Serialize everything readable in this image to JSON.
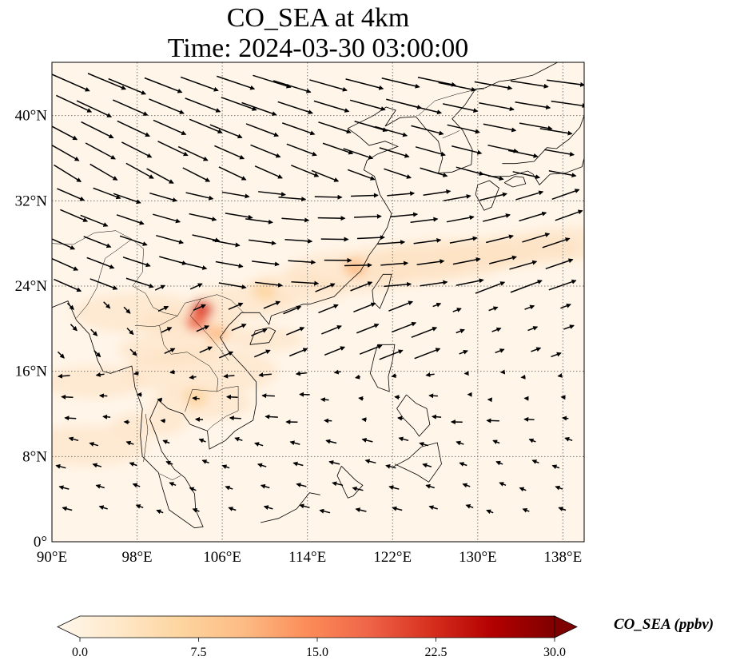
{
  "title": {
    "line1": "CO_SEA at 4km",
    "line2": "Time: 2024-03-30 03:00:00"
  },
  "map": {
    "lon_range": [
      90,
      140
    ],
    "lat_range": [
      0,
      45
    ],
    "lon_ticks": [
      {
        "value": 90,
        "label": "90°E"
      },
      {
        "value": 98,
        "label": "98°E"
      },
      {
        "value": 106,
        "label": "106°E"
      },
      {
        "value": 114,
        "label": "114°E"
      },
      {
        "value": 122,
        "label": "122°E"
      },
      {
        "value": 130,
        "label": "130°E"
      },
      {
        "value": 138,
        "label": "138°E"
      }
    ],
    "lat_ticks": [
      {
        "value": 0,
        "label": "0°"
      },
      {
        "value": 8,
        "label": "8°N"
      },
      {
        "value": 16,
        "label": "16°N"
      },
      {
        "value": 24,
        "label": "24°N"
      },
      {
        "value": 32,
        "label": "32°N"
      },
      {
        "value": 40,
        "label": "40°N"
      }
    ],
    "gridlines": true,
    "gridline_style": "dotted",
    "background_color": "#fff5e8",
    "hotspots": [
      {
        "lon": 104.1,
        "lat": 21.8,
        "level": 22
      },
      {
        "lon": 103.6,
        "lat": 20.6,
        "level": 20
      },
      {
        "lon": 118.5,
        "lat": 25.7,
        "level": 12
      },
      {
        "lon": 110.0,
        "lat": 23.5,
        "level": 9
      },
      {
        "lon": 105.5,
        "lat": 19.5,
        "level": 10
      },
      {
        "lon": 103.5,
        "lat": 13.5,
        "level": 8
      }
    ],
    "wind_arrows_note": "arrows show wind direction and speed"
  },
  "colorbar": {
    "title": "CO_SEA (ppbv)",
    "min": 0.0,
    "max": 30.0,
    "ticks": [
      "0.0",
      "7.5",
      "15.0",
      "22.5",
      "30.0"
    ],
    "colormap": "OrRd",
    "colors": [
      "#fff7ec",
      "#fee8c8",
      "#fdd49e",
      "#fdbb84",
      "#fc8d59",
      "#ef6548",
      "#d7301f",
      "#b30000",
      "#7f0000"
    ],
    "extend": "both"
  }
}
